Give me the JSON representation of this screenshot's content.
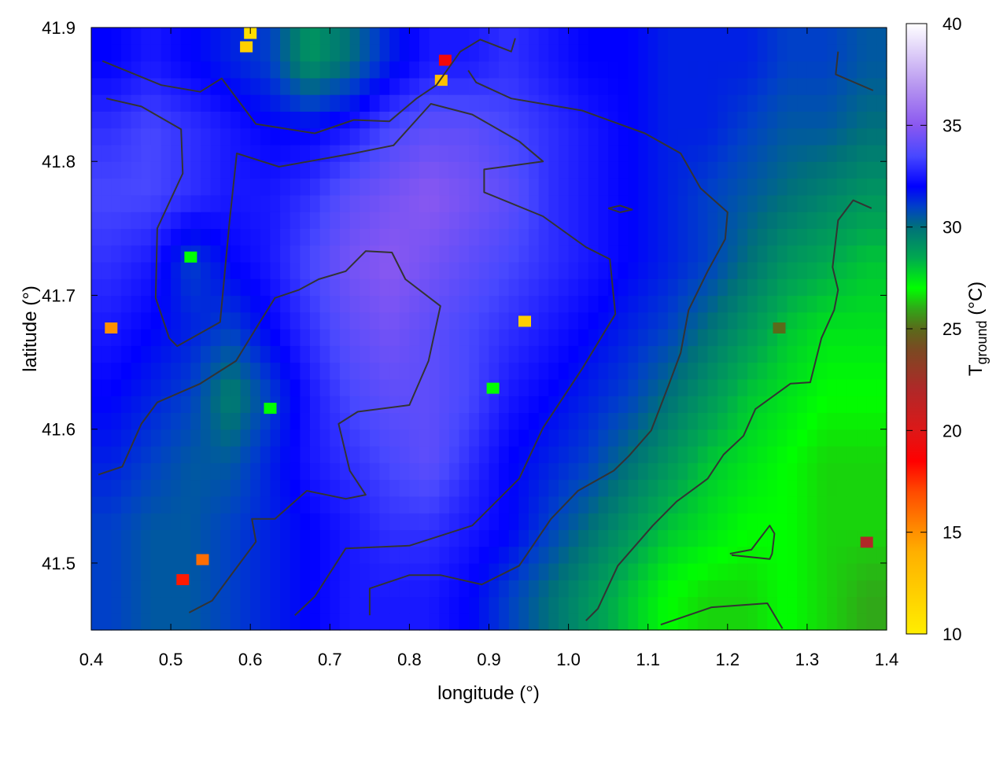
{
  "chart_data": {
    "type": "heatmap",
    "xlabel": "longitude (°)",
    "ylabel": "latitude (°)",
    "colorbar_label": {
      "main": "T",
      "sub": "ground",
      "unit": " (°C)"
    },
    "xlim": [
      0.4,
      1.4
    ],
    "ylim": [
      41.45,
      41.9
    ],
    "zlim": [
      10,
      40
    ],
    "xticks": [
      "0.4",
      "0.5",
      "0.6",
      "0.7",
      "0.8",
      "0.9",
      "1.0",
      "1.1",
      "1.2",
      "1.3",
      "1.4"
    ],
    "yticks": [
      "41.5",
      "41.6",
      "41.7",
      "41.8",
      "41.9"
    ],
    "cbticks": [
      "10",
      "15",
      "20",
      "25",
      "30",
      "35",
      "40"
    ],
    "grid": false,
    "palette": [
      [
        10,
        "#ffee00"
      ],
      [
        14,
        "#ffb000"
      ],
      [
        15,
        "#ff9000"
      ],
      [
        17,
        "#ff4a00"
      ],
      [
        18.5,
        "#ff0000"
      ],
      [
        20,
        "#dd1818"
      ],
      [
        22,
        "#b02828"
      ],
      [
        24,
        "#7a4a22"
      ],
      [
        25,
        "#5a6a1a"
      ],
      [
        26,
        "#30a818"
      ],
      [
        27,
        "#00ff00"
      ],
      [
        28.5,
        "#00a850"
      ],
      [
        30,
        "#00707a"
      ],
      [
        31,
        "#0040c8"
      ],
      [
        32,
        "#0000ff"
      ],
      [
        33.5,
        "#4848ff"
      ],
      [
        35,
        "#8a58f0"
      ],
      [
        37,
        "#b898f0"
      ],
      [
        40,
        "#ffffff"
      ]
    ],
    "grid_lon": [
      0.425,
      0.475,
      0.525,
      0.575,
      0.625,
      0.675,
      0.725,
      0.775,
      0.825,
      0.875,
      0.925,
      0.975,
      1.025,
      1.075,
      1.125,
      1.175,
      1.225,
      1.275,
      1.325,
      1.375
    ],
    "grid_lat": [
      41.875,
      41.825,
      41.775,
      41.725,
      41.675,
      41.625,
      41.575,
      41.525,
      41.475
    ],
    "values": [
      [
        32,
        32.5,
        32,
        31.5,
        31,
        29,
        30,
        31.5,
        32.5,
        32.5,
        33,
        32.5,
        32,
        32,
        31.5,
        31.5,
        31.5,
        31,
        31,
        30.5
      ],
      [
        33,
        33.5,
        33,
        32.5,
        32,
        32,
        32.5,
        33.5,
        34,
        34,
        33.5,
        33,
        32.5,
        32,
        31.5,
        31.5,
        31,
        30.5,
        30.5,
        30
      ],
      [
        33.5,
        33.5,
        33,
        32.5,
        32.5,
        33,
        34,
        34.5,
        35,
        34.5,
        34,
        33,
        32.5,
        32,
        31.5,
        31,
        30.5,
        30,
        29.5,
        29
      ],
      [
        33,
        32.5,
        31,
        32,
        32.5,
        33.5,
        34.5,
        35,
        34.5,
        34,
        33.5,
        33,
        32.5,
        32,
        31.5,
        31,
        30,
        29,
        28.5,
        28
      ],
      [
        32.5,
        32,
        31.5,
        31,
        32,
        33,
        34,
        34.5,
        34,
        33.5,
        33,
        32.5,
        32,
        31.5,
        31,
        30,
        29,
        28,
        27.5,
        27.5
      ],
      [
        32,
        31.5,
        31,
        29.5,
        31,
        32.5,
        33.5,
        34,
        34,
        33.5,
        32.5,
        32,
        31.5,
        31,
        30,
        29,
        28,
        27.5,
        27,
        27
      ],
      [
        31.5,
        31,
        30.5,
        30.5,
        31.5,
        32.5,
        33,
        33.5,
        34,
        33,
        32,
        31.5,
        31,
        30,
        29,
        28,
        27.5,
        27,
        26.5,
        26.5
      ],
      [
        31,
        30.5,
        30.5,
        31,
        31.5,
        32,
        32.5,
        33,
        33,
        32.5,
        32,
        31,
        30,
        29,
        28,
        27.5,
        27,
        27,
        26.5,
        26.5
      ],
      [
        31,
        30.5,
        30.5,
        31,
        31.5,
        32,
        32.5,
        32.5,
        32.5,
        32,
        31,
        30,
        29,
        28,
        27,
        26.5,
        26.5,
        27,
        26.5,
        26
      ]
    ],
    "hotspots": [
      {
        "lon": 0.595,
        "lat": 41.885,
        "t": 12
      },
      {
        "lon": 0.6,
        "lat": 41.895,
        "t": 11
      },
      {
        "lon": 0.84,
        "lat": 41.86,
        "t": 13
      },
      {
        "lon": 0.845,
        "lat": 41.875,
        "t": 19
      },
      {
        "lon": 0.425,
        "lat": 41.675,
        "t": 15
      },
      {
        "lon": 0.945,
        "lat": 41.68,
        "t": 12
      },
      {
        "lon": 0.54,
        "lat": 41.502,
        "t": 16
      },
      {
        "lon": 0.515,
        "lat": 41.487,
        "t": 18
      },
      {
        "lon": 1.375,
        "lat": 41.515,
        "t": 22
      },
      {
        "lon": 1.265,
        "lat": 41.675,
        "t": 25
      },
      {
        "lon": 0.625,
        "lat": 41.615,
        "t": 27
      },
      {
        "lon": 0.905,
        "lat": 41.63,
        "t": 27
      },
      {
        "lon": 0.525,
        "lat": 41.728,
        "t": 27
      }
    ],
    "contours": [
      [
        [
          0.414,
          41.875
        ],
        [
          0.488,
          41.857
        ],
        [
          0.537,
          41.852
        ],
        [
          0.564,
          41.862
        ],
        [
          0.607,
          41.828
        ],
        [
          0.681,
          41.821
        ],
        [
          0.73,
          41.831
        ],
        [
          0.775,
          41.83
        ],
        [
          0.809,
          41.847
        ],
        [
          0.834,
          41.857
        ],
        [
          0.864,
          41.882
        ],
        [
          0.889,
          41.891
        ],
        [
          0.928,
          41.882
        ],
        [
          0.933,
          41.892
        ]
      ],
      [
        [
          0.419,
          41.847
        ],
        [
          0.463,
          41.841
        ],
        [
          0.513,
          41.824
        ],
        [
          0.515,
          41.791
        ],
        [
          0.483,
          41.75
        ],
        [
          0.481,
          41.698
        ],
        [
          0.498,
          41.668
        ],
        [
          0.508,
          41.662
        ],
        [
          0.562,
          41.68
        ],
        [
          0.574,
          41.756
        ],
        [
          0.583,
          41.806
        ],
        [
          0.636,
          41.796
        ],
        [
          0.73,
          41.806
        ],
        [
          0.78,
          41.812
        ],
        [
          0.827,
          41.843
        ],
        [
          0.879,
          41.835
        ],
        [
          0.938,
          41.815
        ],
        [
          0.968,
          41.8
        ],
        [
          0.894,
          41.794
        ],
        [
          0.894,
          41.777
        ],
        [
          0.968,
          41.759
        ],
        [
          1.022,
          41.736
        ],
        [
          1.052,
          41.727
        ],
        [
          1.059,
          41.686
        ],
        [
          1.017,
          41.645
        ],
        [
          0.968,
          41.601
        ],
        [
          0.938,
          41.563
        ],
        [
          0.879,
          41.528
        ],
        [
          0.8,
          41.513
        ],
        [
          0.72,
          41.511
        ],
        [
          0.681,
          41.475
        ],
        [
          0.656,
          41.461
        ]
      ],
      [
        [
          0.523,
          41.463
        ],
        [
          0.552,
          41.472
        ],
        [
          0.577,
          41.492
        ],
        [
          0.607,
          41.516
        ],
        [
          0.602,
          41.533
        ],
        [
          0.631,
          41.533
        ],
        [
          0.671,
          41.554
        ],
        [
          0.72,
          41.548
        ],
        [
          0.745,
          41.551
        ],
        [
          0.725,
          41.569
        ],
        [
          0.711,
          41.604
        ],
        [
          0.735,
          41.613
        ],
        [
          0.8,
          41.618
        ],
        [
          0.824,
          41.651
        ],
        [
          0.839,
          41.692
        ],
        [
          0.795,
          41.712
        ],
        [
          0.778,
          41.732
        ],
        [
          0.745,
          41.733
        ],
        [
          0.72,
          41.718
        ],
        [
          0.686,
          41.712
        ],
        [
          0.661,
          41.704
        ],
        [
          0.631,
          41.698
        ],
        [
          0.612,
          41.68
        ],
        [
          0.582,
          41.651
        ],
        [
          0.537,
          41.634
        ],
        [
          0.483,
          41.62
        ],
        [
          0.463,
          41.604
        ],
        [
          0.439,
          41.572
        ],
        [
          0.409,
          41.566
        ]
      ],
      [
        [
          1.022,
          41.457
        ],
        [
          1.037,
          41.466
        ],
        [
          1.062,
          41.498
        ],
        [
          1.106,
          41.528
        ],
        [
          1.136,
          41.546
        ],
        [
          1.175,
          41.563
        ],
        [
          1.195,
          41.581
        ],
        [
          1.22,
          41.595
        ],
        [
          1.235,
          41.615
        ],
        [
          1.279,
          41.634
        ],
        [
          1.304,
          41.635
        ],
        [
          1.318,
          41.668
        ],
        [
          1.334,
          41.689
        ],
        [
          1.339,
          41.704
        ],
        [
          1.332,
          41.721
        ],
        [
          1.339,
          41.756
        ],
        [
          1.358,
          41.771
        ],
        [
          1.381,
          41.765
        ]
      ],
      [
        [
          0.75,
          41.461
        ],
        [
          0.75,
          41.481
        ],
        [
          0.8,
          41.491
        ],
        [
          0.839,
          41.491
        ],
        [
          0.891,
          41.484
        ],
        [
          0.938,
          41.498
        ],
        [
          0.978,
          41.533
        ],
        [
          1.012,
          41.554
        ],
        [
          1.057,
          41.569
        ],
        [
          1.076,
          41.58
        ],
        [
          1.104,
          41.599
        ],
        [
          1.126,
          41.633
        ],
        [
          1.141,
          41.657
        ],
        [
          1.151,
          41.689
        ],
        [
          1.175,
          41.718
        ],
        [
          1.197,
          41.742
        ],
        [
          1.2,
          41.762
        ],
        [
          1.166,
          41.78
        ],
        [
          1.141,
          41.806
        ],
        [
          1.096,
          41.821
        ],
        [
          1.017,
          41.838
        ],
        [
          0.928,
          41.847
        ],
        [
          0.884,
          41.859
        ],
        [
          0.874,
          41.868
        ]
      ],
      [
        [
          1.203,
          41.507
        ],
        [
          1.23,
          41.51
        ],
        [
          1.253,
          41.528
        ],
        [
          1.259,
          41.522
        ],
        [
          1.256,
          41.507
        ],
        [
          1.253,
          41.503
        ],
        [
          1.205,
          41.506
        ]
      ],
      [
        [
          1.116,
          41.454
        ],
        [
          1.18,
          41.467
        ],
        [
          1.25,
          41.47
        ],
        [
          1.269,
          41.451
        ]
      ],
      [
        [
          1.339,
          41.882
        ],
        [
          1.336,
          41.865
        ],
        [
          1.383,
          41.853
        ]
      ],
      [
        [
          1.05,
          41.765
        ],
        [
          1.065,
          41.767
        ],
        [
          1.08,
          41.764
        ],
        [
          1.065,
          41.762
        ],
        [
          1.05,
          41.765
        ]
      ]
    ],
    "contour_color": "#333333"
  }
}
